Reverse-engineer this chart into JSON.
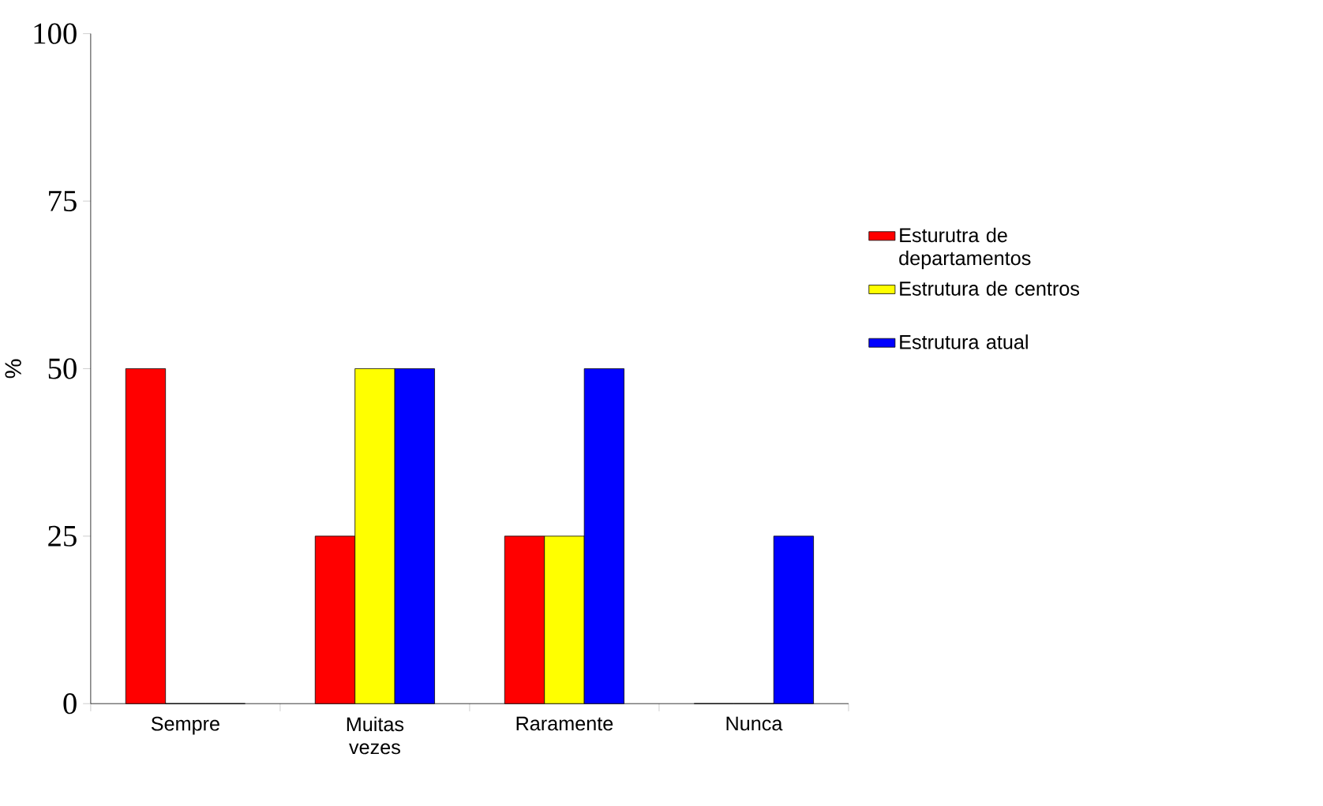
{
  "chart_data": {
    "type": "bar",
    "ylabel": "%",
    "categories": [
      "Sempre",
      "Muitas vezes",
      "Raramente",
      "Nunca"
    ],
    "series": [
      {
        "name": "Esturutra de departamentos",
        "color": "#ff0000",
        "values": [
          50,
          25,
          25,
          0
        ]
      },
      {
        "name": "Estrutura de centros",
        "color": "#ffff00",
        "values": [
          0,
          50,
          25,
          0
        ]
      },
      {
        "name": "Estrutura atual",
        "color": "#0000ff",
        "values": [
          0,
          50,
          50,
          25
        ]
      }
    ],
    "ylim": [
      0,
      100
    ],
    "yticks": [
      0,
      25,
      50,
      75,
      100
    ],
    "grid": false,
    "legend": "right"
  }
}
